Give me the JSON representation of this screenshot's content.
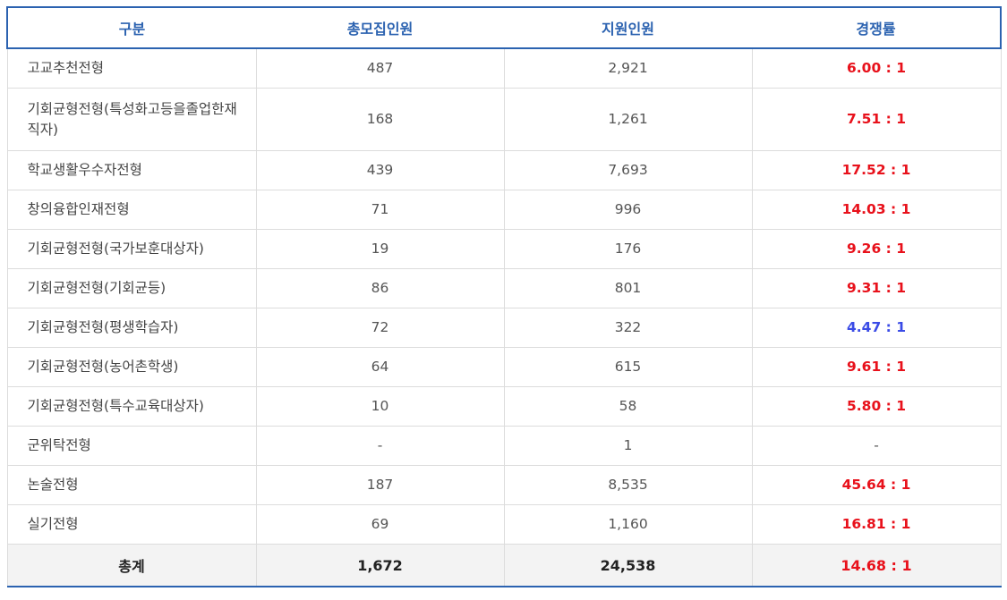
{
  "header": {
    "category": "구분",
    "recruits": "총모집인원",
    "applicants": "지원인원",
    "ratio": "경쟁률"
  },
  "rows": [
    {
      "name": "고교추천전형",
      "recruits": "487",
      "applicants": "2,921",
      "ratio": "6.00 : 1",
      "ratio_color": "red"
    },
    {
      "name": "기회균형전형(특성화고등을졸업한재직자)",
      "recruits": "168",
      "applicants": "1,261",
      "ratio": "7.51 : 1",
      "ratio_color": "red"
    },
    {
      "name": "학교생활우수자전형",
      "recruits": "439",
      "applicants": "7,693",
      "ratio": "17.52 : 1",
      "ratio_color": "red"
    },
    {
      "name": "창의융합인재전형",
      "recruits": "71",
      "applicants": "996",
      "ratio": "14.03 : 1",
      "ratio_color": "red"
    },
    {
      "name": "기회균형전형(국가보훈대상자)",
      "recruits": "19",
      "applicants": "176",
      "ratio": "9.26 : 1",
      "ratio_color": "red"
    },
    {
      "name": "기회균형전형(기회균등)",
      "recruits": "86",
      "applicants": "801",
      "ratio": "9.31 : 1",
      "ratio_color": "red"
    },
    {
      "name": "기회균형전형(평생학습자)",
      "recruits": "72",
      "applicants": "322",
      "ratio": "4.47 : 1",
      "ratio_color": "blue"
    },
    {
      "name": "기회균형전형(농어촌학생)",
      "recruits": "64",
      "applicants": "615",
      "ratio": "9.61 : 1",
      "ratio_color": "red"
    },
    {
      "name": "기회균형전형(특수교육대상자)",
      "recruits": "10",
      "applicants": "58",
      "ratio": "5.80 : 1",
      "ratio_color": "red"
    },
    {
      "name": "군위탁전형",
      "recruits": "-",
      "applicants": "1",
      "ratio": "-",
      "ratio_color": "plain"
    },
    {
      "name": "논술전형",
      "recruits": "187",
      "applicants": "8,535",
      "ratio": "45.64 : 1",
      "ratio_color": "red"
    },
    {
      "name": "실기전형",
      "recruits": "69",
      "applicants": "1,160",
      "ratio": "16.81 : 1",
      "ratio_color": "red"
    }
  ],
  "total": {
    "label": "총계",
    "recruits": "1,672",
    "applicants": "24,538",
    "ratio": "14.68 : 1"
  },
  "colors": {
    "header_blue": "#2b62b0",
    "ratio_red": "#e8111b",
    "ratio_blue": "#3a4be6"
  }
}
